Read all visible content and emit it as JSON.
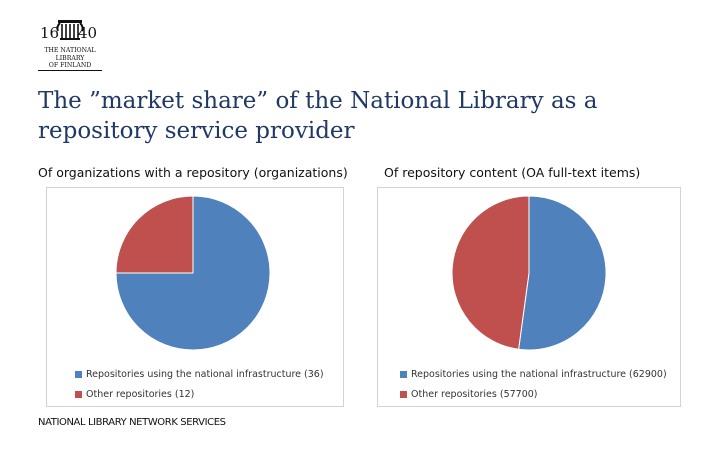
{
  "logo": {
    "year_left": "16",
    "year_right": "40",
    "lines": [
      "THE NATIONAL",
      "LIBRARY",
      "OF FINLAND"
    ]
  },
  "slide": {
    "title_line1": "The ”market share” of the National Library as a",
    "title_line2": "repository service provider",
    "footer": "NATIONAL LIBRARY NETWORK SERVICES"
  },
  "colors": {
    "blue": "#4f81bd",
    "red": "#c0504d",
    "title": "#1f3864"
  },
  "chart_data": [
    {
      "type": "pie",
      "title": "Of organizations with a repository (organizations)",
      "labels": [
        "Repositories using the national infrastructure (36)",
        "Other repositories (12)"
      ],
      "values": [
        36,
        12
      ],
      "colors": [
        "#4f81bd",
        "#c0504d"
      ],
      "legend": "bottom-left"
    },
    {
      "type": "pie",
      "title": "Of repository content (OA full-text items)",
      "labels": [
        "Repositories using the national infrastructure (62900)",
        "Other repositories (57700)"
      ],
      "values": [
        62900,
        57700
      ],
      "colors": [
        "#4f81bd",
        "#c0504d"
      ],
      "legend": "bottom-left"
    }
  ]
}
